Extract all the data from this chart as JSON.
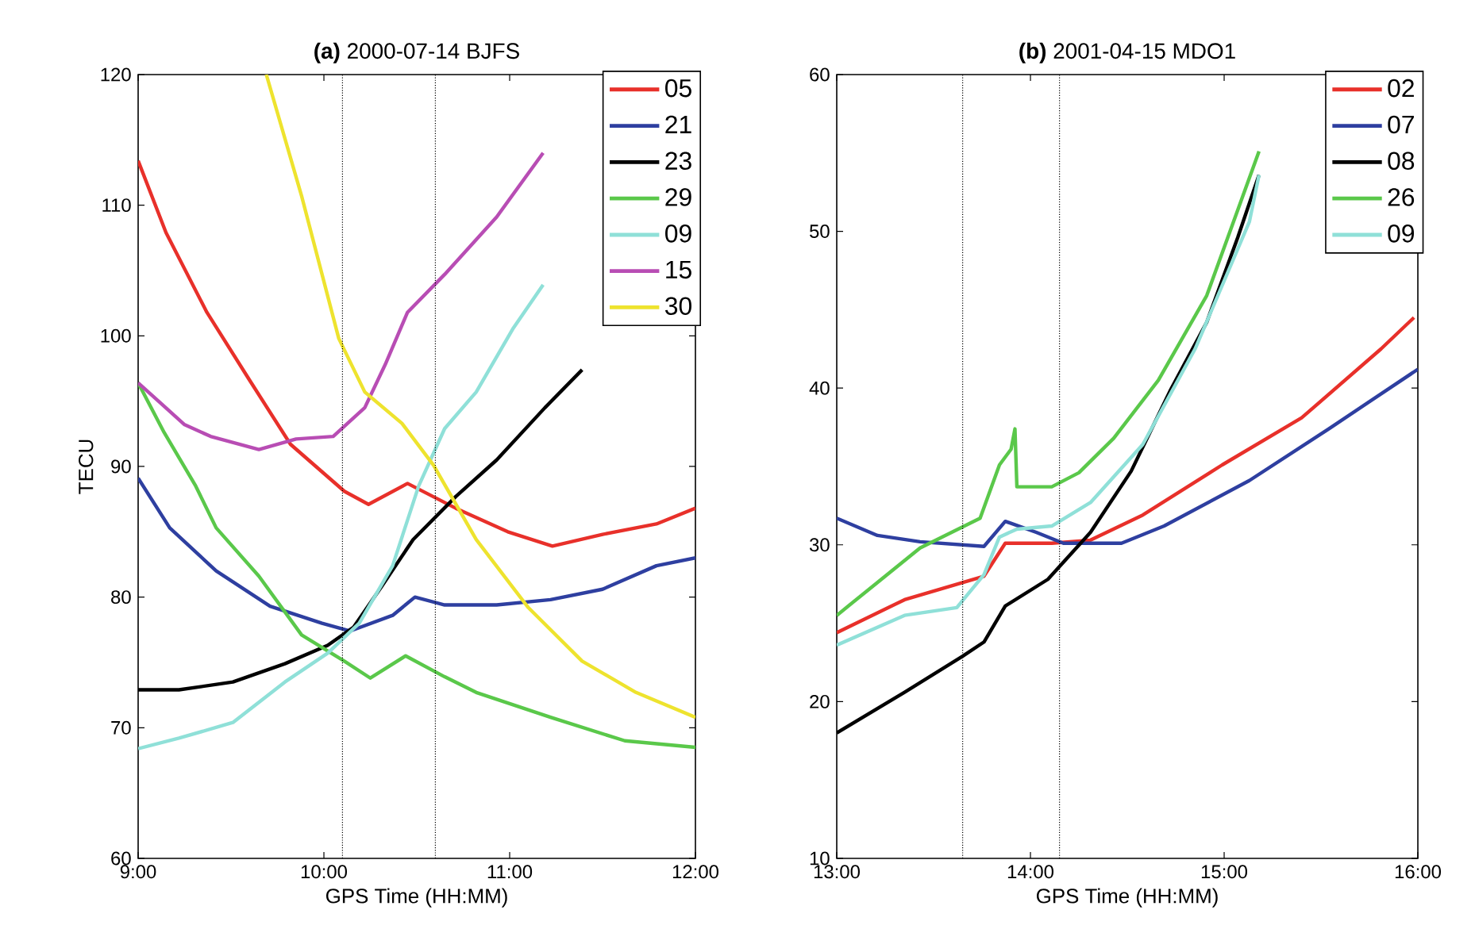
{
  "chart_data": [
    {
      "type": "line",
      "title": "**(a)** 2000-07-14 BJFS",
      "xlabel": "GPS Time (HH:MM)",
      "ylabel": "TECU",
      "xlim": [
        9,
        12
      ],
      "xticks": [
        {
          "value": 9,
          "label": "9:00"
        },
        {
          "value": 10,
          "label": "10:00"
        },
        {
          "value": 11,
          "label": "11:00"
        },
        {
          "value": 12,
          "label": "12:00"
        }
      ],
      "ylim": [
        60,
        120
      ],
      "yticks": [
        60,
        70,
        80,
        90,
        100,
        110,
        120
      ],
      "grid": false,
      "legend": "top right",
      "line_style": "solid",
      "ref_lines": [
        {
          "axis": "x",
          "value": 10.1,
          "line_style": "dotted",
          "color": "#000000"
        },
        {
          "axis": "x",
          "value": 10.6,
          "line_style": "dotted",
          "color": "#000000"
        }
      ],
      "series": [
        {
          "name": "05",
          "color": "#e8302a",
          "x": [
            9.0,
            9.15,
            9.37,
            9.6,
            9.82,
            10.11,
            10.24,
            10.45,
            10.71,
            10.99,
            11.23,
            11.5,
            11.79,
            12.0
          ],
          "values": [
            113.4,
            107.9,
            101.8,
            96.6,
            91.7,
            88.1,
            87.1,
            88.7,
            86.8,
            85.0,
            83.9,
            84.8,
            85.6,
            86.8
          ]
        },
        {
          "name": "21",
          "color": "#2e3fa0",
          "x": [
            9.0,
            9.17,
            9.42,
            9.71,
            9.99,
            10.14,
            10.37,
            10.49,
            10.65,
            10.93,
            11.22,
            11.5,
            11.79,
            12.0
          ],
          "values": [
            89.1,
            85.3,
            82.0,
            79.3,
            78.0,
            77.4,
            78.6,
            80.0,
            79.4,
            79.4,
            79.8,
            80.6,
            82.4,
            83.0
          ]
        },
        {
          "name": "23",
          "color": "#000000",
          "x": [
            9.0,
            9.22,
            9.51,
            9.79,
            10.02,
            10.16,
            10.31,
            10.48,
            10.71,
            10.93,
            11.19,
            11.39
          ],
          "values": [
            72.9,
            72.9,
            73.5,
            74.9,
            76.3,
            77.7,
            80.8,
            84.4,
            87.7,
            90.5,
            94.5,
            97.4
          ]
        },
        {
          "name": "29",
          "color": "#5ac84a",
          "x": [
            9.0,
            9.14,
            9.31,
            9.42,
            9.65,
            9.88,
            10.11,
            10.25,
            10.44,
            10.65,
            10.82,
            11.22,
            11.62,
            12.0
          ],
          "values": [
            96.4,
            92.6,
            88.5,
            85.3,
            81.6,
            77.1,
            75.1,
            73.8,
            75.5,
            73.9,
            72.7,
            70.8,
            69.0,
            68.5
          ]
        },
        {
          "name": "09",
          "color": "#8fe0d8",
          "x": [
            9.0,
            9.22,
            9.51,
            9.79,
            10.02,
            10.19,
            10.37,
            10.51,
            10.65,
            10.82,
            11.02,
            11.18
          ],
          "values": [
            68.4,
            69.2,
            70.4,
            73.5,
            75.7,
            78.0,
            82.4,
            88.5,
            92.9,
            95.7,
            100.6,
            103.9
          ]
        },
        {
          "name": "15",
          "color": "#b84db4",
          "x": [
            9.0,
            9.25,
            9.39,
            9.65,
            9.85,
            10.05,
            10.22,
            10.33,
            10.45,
            10.65,
            10.93,
            11.18
          ],
          "values": [
            96.4,
            93.2,
            92.3,
            91.3,
            92.1,
            92.3,
            94.5,
            97.8,
            101.8,
            104.7,
            109.1,
            114.0
          ]
        },
        {
          "name": "30",
          "color": "#eee32e",
          "x": [
            9.69,
            9.88,
            10.08,
            10.22,
            10.42,
            10.59,
            10.82,
            11.1,
            11.39,
            11.68,
            12.0
          ],
          "values": [
            120,
            110.7,
            99.8,
            95.7,
            93.3,
            90.1,
            84.4,
            79.2,
            75.1,
            72.7,
            70.8
          ]
        }
      ]
    },
    {
      "type": "line",
      "title": "**(b)** 2001-04-15 MDO1",
      "xlabel": "GPS Time (HH:MM)",
      "xlim": [
        13,
        16
      ],
      "xticks": [
        {
          "value": 13,
          "label": "13:00"
        },
        {
          "value": 14,
          "label": "14:00"
        },
        {
          "value": 15,
          "label": "15:00"
        },
        {
          "value": 16,
          "label": "16:00"
        }
      ],
      "ylim": [
        10,
        60
      ],
      "yticks": [
        10,
        20,
        30,
        40,
        50,
        60
      ],
      "grid": false,
      "legend": "top right",
      "line_style": "solid",
      "ref_lines": [
        {
          "axis": "x",
          "value": 13.65,
          "line_style": "dotted",
          "color": "#000000"
        },
        {
          "axis": "x",
          "value": 14.15,
          "line_style": "dotted",
          "color": "#000000"
        }
      ],
      "series": [
        {
          "name": "02",
          "color": "#e8302a",
          "x": [
            13.0,
            13.35,
            13.76,
            13.87,
            14.11,
            14.31,
            14.58,
            14.99,
            15.4,
            15.81,
            15.98
          ],
          "values": [
            24.4,
            26.5,
            28.0,
            30.1,
            30.1,
            30.3,
            31.9,
            35.1,
            38.1,
            42.5,
            44.5
          ]
        },
        {
          "name": "07",
          "color": "#2e3fa0",
          "x": [
            13.0,
            13.21,
            13.43,
            13.76,
            13.87,
            14.03,
            14.17,
            14.47,
            14.69,
            15.13,
            15.54,
            16.0
          ],
          "values": [
            31.7,
            30.6,
            30.2,
            29.9,
            31.5,
            30.8,
            30.1,
            30.1,
            31.2,
            34.1,
            37.4,
            41.2
          ]
        },
        {
          "name": "08",
          "color": "#000000",
          "x": [
            13.0,
            13.35,
            13.65,
            13.76,
            13.87,
            14.09,
            14.31,
            14.52,
            14.72,
            14.91,
            15.07,
            15.18
          ],
          "values": [
            18.0,
            20.6,
            22.9,
            23.8,
            26.1,
            27.8,
            30.8,
            34.7,
            39.8,
            44.2,
            49.6,
            53.6
          ]
        },
        {
          "name": "26",
          "color": "#5ac84a",
          "x": [
            13.0,
            13.21,
            13.43,
            13.74,
            13.84,
            13.9,
            13.92,
            13.93,
            14.11,
            14.25,
            14.43,
            14.66,
            14.91,
            15.18
          ],
          "values": [
            25.5,
            27.6,
            29.8,
            31.7,
            35.1,
            36.1,
            37.4,
            33.7,
            33.7,
            34.6,
            36.8,
            40.5,
            45.9,
            55.1
          ]
        },
        {
          "name": "09",
          "color": "#8fe0d8",
          "x": [
            13.0,
            13.35,
            13.62,
            13.76,
            13.84,
            13.93,
            14.11,
            14.31,
            14.58,
            14.85,
            15.13,
            15.18
          ],
          "values": [
            23.6,
            25.5,
            26.0,
            28.1,
            30.5,
            31.0,
            31.2,
            32.7,
            36.4,
            42.5,
            50.6,
            53.6
          ]
        }
      ]
    }
  ]
}
